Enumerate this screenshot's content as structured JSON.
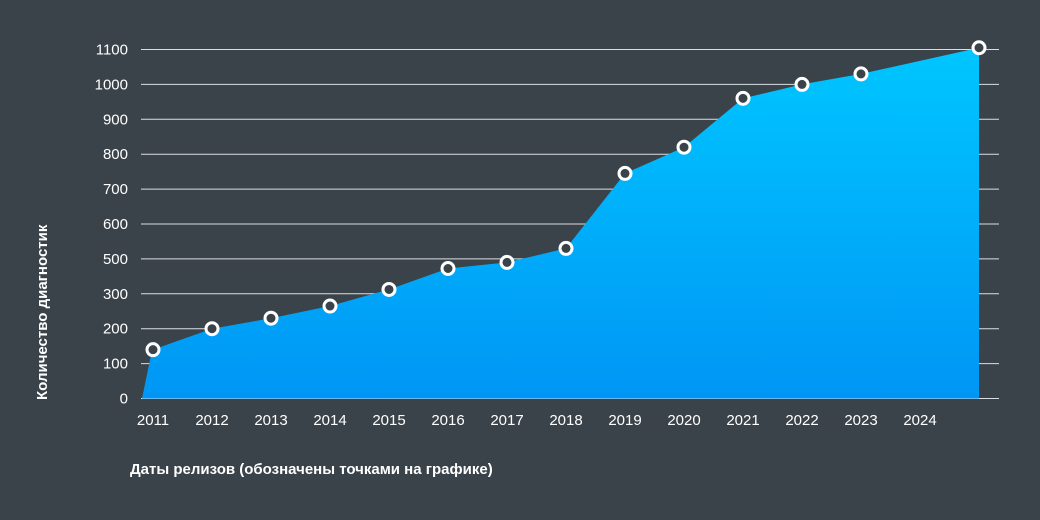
{
  "chart_data": {
    "type": "area",
    "xlabel": "Даты релизов (обозначены точками на графике)",
    "ylabel": "Количество диагностик",
    "x_ticks": [
      "2011",
      "2012",
      "2013",
      "2014",
      "2015",
      "2016",
      "2017",
      "2018",
      "2019",
      "2020",
      "2021",
      "2022",
      "2023",
      "2024"
    ],
    "y_ticks": [
      "0",
      "100",
      "200",
      "300",
      "500",
      "600",
      "700",
      "800",
      "900",
      "1000",
      "1100"
    ],
    "points": [
      {
        "x": 2011.0,
        "y": 140
      },
      {
        "x": 2012.0,
        "y": 200
      },
      {
        "x": 2013.0,
        "y": 230
      },
      {
        "x": 2014.0,
        "y": 265
      },
      {
        "x": 2015.0,
        "y": 325
      },
      {
        "x": 2016.0,
        "y": 445
      },
      {
        "x": 2017.0,
        "y": 480
      },
      {
        "x": 2018.0,
        "y": 530
      },
      {
        "x": 2019.0,
        "y": 745
      },
      {
        "x": 2020.0,
        "y": 820
      },
      {
        "x": 2021.0,
        "y": 960
      },
      {
        "x": 2022.0,
        "y": 1000
      },
      {
        "x": 2023.0,
        "y": 1030
      },
      {
        "x": 2025.0,
        "y": 1105
      }
    ],
    "grid": true,
    "fill_gradient": [
      "#00c6ff",
      "#0096f5"
    ],
    "marker_fill": "#3a434a",
    "marker_stroke": "#ffffff"
  }
}
